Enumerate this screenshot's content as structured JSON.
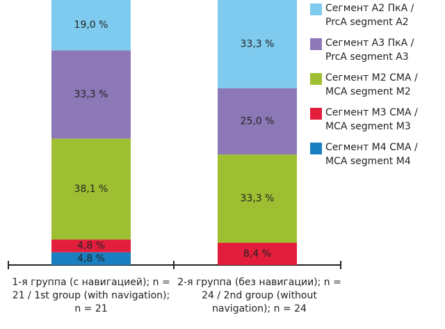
{
  "chart_data": {
    "type": "stacked_bar",
    "categories": [
      "1-я группа (с навигацией); n = 21 / 1st group (with navigation); n = 21",
      "2-я группа (без навигации); n = 24 / 2nd group (without navigation); n = 24"
    ],
    "ylim": [
      0,
      100
    ],
    "series": [
      {
        "name": "Сегмент М4 СМА / MCA segment M4",
        "color": "#1a7fc1",
        "values": [
          4.8,
          null
        ],
        "value_labels": [
          "4,8 %",
          null
        ]
      },
      {
        "name": "Сегмент М3 СМА / MCA segment M3",
        "color": "#e31e3c",
        "values": [
          4.8,
          8.4
        ],
        "value_labels": [
          "4,8 %",
          "8,4 %"
        ]
      },
      {
        "name": "Сегмент М2 СМА / MCA segment M2",
        "color": "#9fbf32",
        "values": [
          38.1,
          33.3
        ],
        "value_labels": [
          "38,1 %",
          "33,3 %"
        ]
      },
      {
        "name": "Сегмент А3 ПкА / PrcA segment A3",
        "color": "#8c78b6",
        "values": [
          33.3,
          25.0
        ],
        "value_labels": [
          "33,3 %",
          "25,0 %"
        ]
      },
      {
        "name": "Сегмент А2 ПкА / PrcA segment A2",
        "color": "#7ecbef",
        "values": [
          19.0,
          33.3
        ],
        "value_labels": [
          "19,0 %",
          "33,3 %"
        ]
      }
    ]
  }
}
